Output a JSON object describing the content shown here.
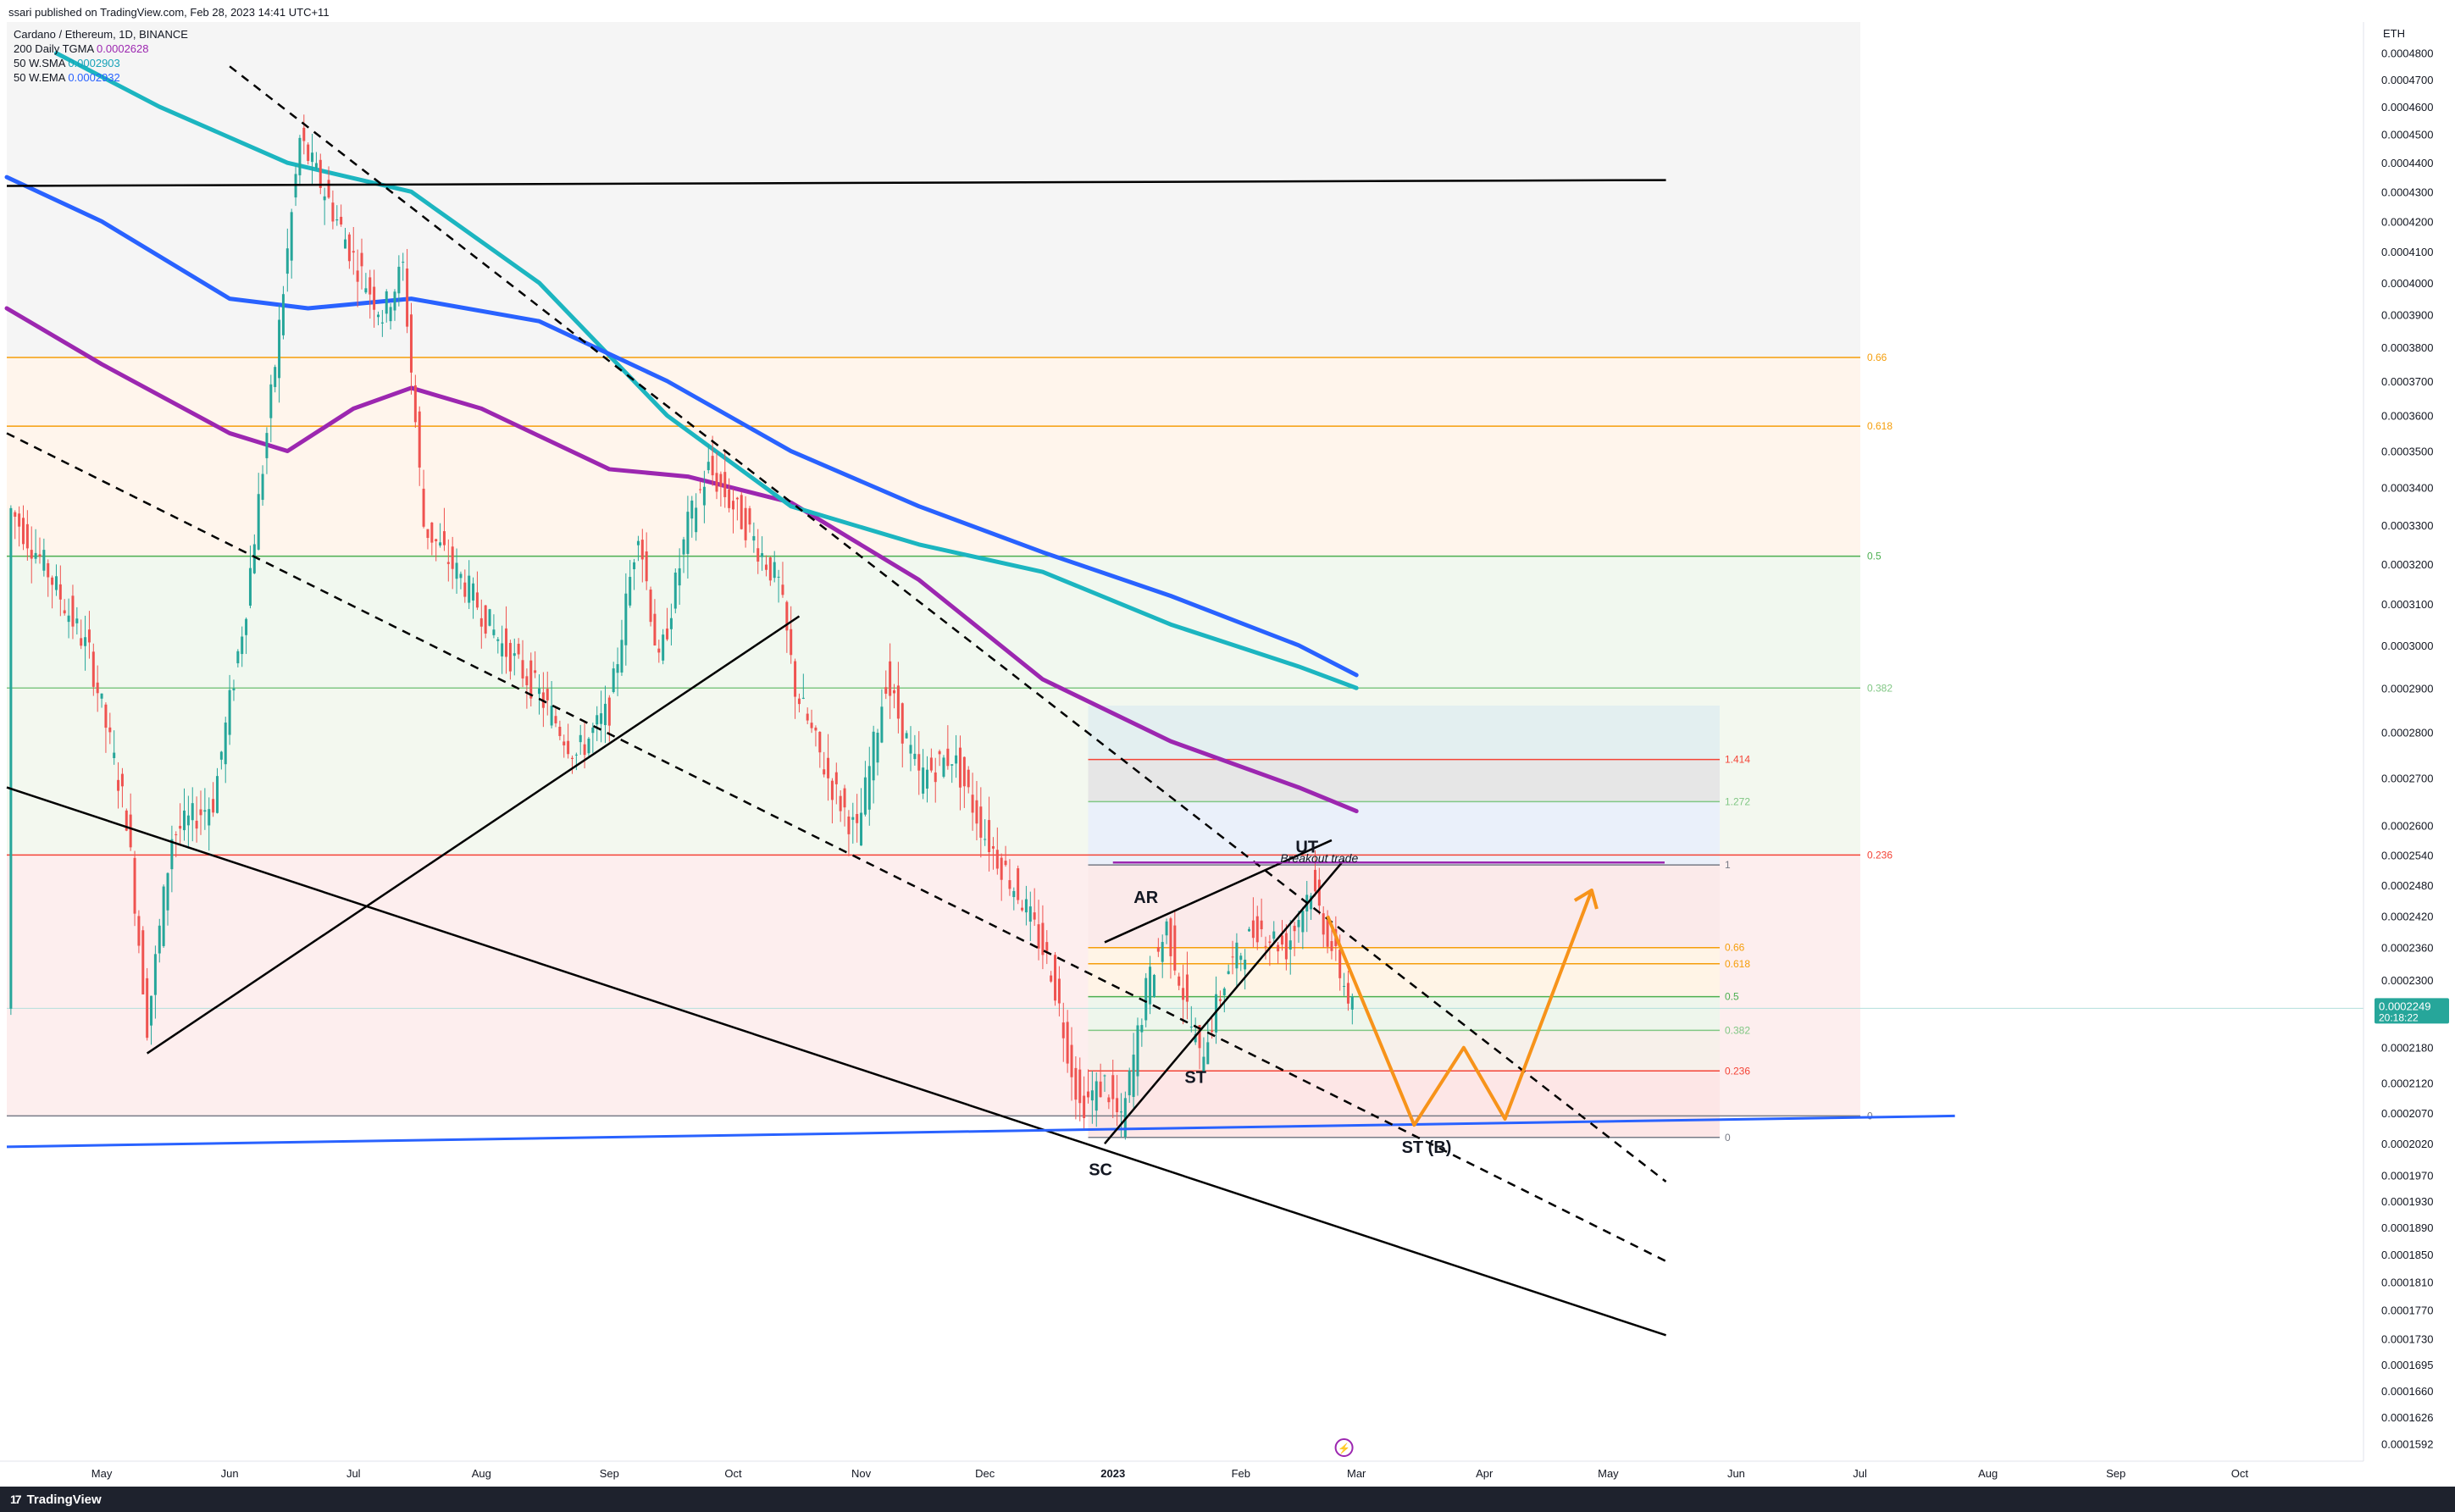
{
  "header": {
    "published": "ssari published on TradingView.com, Feb 28, 2023 14:41 UTC+11"
  },
  "legend": {
    "symbol": "Cardano / Ethereum, 1D, BINANCE",
    "indicators": [
      {
        "name": "200 Daily TGMA",
        "value": "0.0002628",
        "color": "#9c27b0"
      },
      {
        "name": "50 W.SMA",
        "value": "0.0002903",
        "color": "#17a2b8"
      },
      {
        "name": "50 W.EMA",
        "value": "0.0002932",
        "color": "#2962ff"
      }
    ]
  },
  "colors": {
    "up": "#26a69a",
    "down": "#ef5350",
    "tgma": "#9c27b0",
    "wsma": "#1cb5c0",
    "wema": "#2962ff",
    "projection": "#f7931a",
    "price_badge": "#26a69a"
  },
  "chart_data": {
    "type": "candlestick",
    "title": "Cardano / Ethereum, 1D, BINANCE",
    "y_unit": "ETH",
    "y_axis_scale": "log",
    "y_range": [
      0.000157,
      0.000492
    ],
    "x_range": [
      "2022-04-08",
      "2023-10-31"
    ],
    "y_ticks": [
      "0.0004800",
      "0.0004700",
      "0.0004600",
      "0.0004500",
      "0.0004400",
      "0.0004300",
      "0.0004200",
      "0.0004100",
      "0.0004000",
      "0.0003900",
      "0.0003800",
      "0.0003700",
      "0.0003600",
      "0.0003500",
      "0.0003400",
      "0.0003300",
      "0.0003200",
      "0.0003100",
      "0.0003000",
      "0.0002900",
      "0.0002800",
      "0.0002700",
      "0.0002600",
      "0.0002540",
      "0.0002480",
      "0.0002420",
      "0.0002360",
      "0.0002300",
      "0.0002240",
      "0.0002180",
      "0.0002120",
      "0.0002070",
      "0.0002020",
      "0.0001970",
      "0.0001930",
      "0.0001890",
      "0.0001850",
      "0.0001810",
      "0.0001770",
      "0.0001730",
      "0.0001695",
      "0.0001660",
      "0.0001626",
      "0.0001592"
    ],
    "x_ticks": [
      {
        "label": "May",
        "date": "2022-05-01"
      },
      {
        "label": "Jun",
        "date": "2022-06-01"
      },
      {
        "label": "Jul",
        "date": "2022-07-01"
      },
      {
        "label": "Aug",
        "date": "2022-08-01"
      },
      {
        "label": "Sep",
        "date": "2022-09-01"
      },
      {
        "label": "Oct",
        "date": "2022-10-01"
      },
      {
        "label": "Nov",
        "date": "2022-11-01"
      },
      {
        "label": "Dec",
        "date": "2022-12-01"
      },
      {
        "label": "2023",
        "date": "2023-01-01"
      },
      {
        "label": "Feb",
        "date": "2023-02-01"
      },
      {
        "label": "Mar",
        "date": "2023-03-01"
      },
      {
        "label": "Apr",
        "date": "2023-04-01"
      },
      {
        "label": "May",
        "date": "2023-05-01"
      },
      {
        "label": "Jun",
        "date": "2023-06-01"
      },
      {
        "label": "Jul",
        "date": "2023-07-01"
      },
      {
        "label": "Aug",
        "date": "2023-08-01"
      },
      {
        "label": "Sep",
        "date": "2023-09-01"
      },
      {
        "label": "Oct",
        "date": "2023-10-01"
      }
    ],
    "price_path": [
      [
        "2022-04-09",
        0.000334
      ],
      [
        "2022-04-18",
        0.000318
      ],
      [
        "2022-04-28",
        0.000298
      ],
      [
        "2022-05-07",
        0.000262
      ],
      [
        "2022-05-12",
        0.000222
      ],
      [
        "2022-05-18",
        0.000258
      ],
      [
        "2022-05-28",
        0.000265
      ],
      [
        "2022-06-05",
        0.00031
      ],
      [
        "2022-06-12",
        0.000375
      ],
      [
        "2022-06-18",
        0.000448
      ],
      [
        "2022-06-24",
        0.00043
      ],
      [
        "2022-07-01",
        0.000408
      ],
      [
        "2022-07-08",
        0.00039
      ],
      [
        "2022-07-13",
        0.000405
      ],
      [
        "2022-07-18",
        0.00033
      ],
      [
        "2022-07-28",
        0.000315
      ],
      [
        "2022-08-06",
        0.0003
      ],
      [
        "2022-08-14",
        0.00029
      ],
      [
        "2022-08-24",
        0.000275
      ],
      [
        "2022-09-01",
        0.000285
      ],
      [
        "2022-09-08",
        0.00033
      ],
      [
        "2022-09-13",
        0.000295
      ],
      [
        "2022-09-20",
        0.00033
      ],
      [
        "2022-09-25",
        0.000345
      ],
      [
        "2022-10-04",
        0.00033
      ],
      [
        "2022-10-12",
        0.000315
      ],
      [
        "2022-10-16",
        0.00029
      ],
      [
        "2022-10-24",
        0.00027
      ],
      [
        "2022-10-31",
        0.000258
      ],
      [
        "2022-11-07",
        0.000292
      ],
      [
        "2022-11-15",
        0.00027
      ],
      [
        "2022-11-23",
        0.000275
      ],
      [
        "2022-12-01",
        0.000258
      ],
      [
        "2022-12-10",
        0.000245
      ],
      [
        "2022-12-17",
        0.000232
      ],
      [
        "2022-12-24",
        0.000208
      ],
      [
        "2022-12-30",
        0.000212
      ],
      [
        "2023-01-03",
        0.000205
      ],
      [
        "2023-01-09",
        0.000228
      ],
      [
        "2023-01-14",
        0.00024
      ],
      [
        "2023-01-22",
        0.000216
      ],
      [
        "2023-01-29",
        0.000232
      ],
      [
        "2023-02-05",
        0.00024
      ],
      [
        "2023-02-12",
        0.000236
      ],
      [
        "2023-02-18",
        0.000248
      ],
      [
        "2023-02-23",
        0.000236
      ],
      [
        "2023-02-28",
        0.0002249
      ]
    ],
    "last_price": {
      "value": "0.0002249",
      "countdown": "20:18:22"
    },
    "moving_averages": [
      {
        "name": "200 Daily TGMA",
        "color": "#9c27b0",
        "points": [
          [
            "2022-04-08",
            0.000392
          ],
          [
            "2022-05-01",
            0.000375
          ],
          [
            "2022-06-01",
            0.000355
          ],
          [
            "2022-06-15",
            0.00035
          ],
          [
            "2022-07-01",
            0.000362
          ],
          [
            "2022-07-15",
            0.000368
          ],
          [
            "2022-08-01",
            0.000362
          ],
          [
            "2022-09-01",
            0.000345
          ],
          [
            "2022-09-20",
            0.000343
          ],
          [
            "2022-10-15",
            0.000336
          ],
          [
            "2022-11-15",
            0.000316
          ],
          [
            "2022-12-15",
            0.000292
          ],
          [
            "2023-01-15",
            0.000278
          ],
          [
            "2023-02-15",
            0.000268
          ],
          [
            "2023-03-01",
            0.000263
          ]
        ]
      },
      {
        "name": "50 W.SMA",
        "color": "#1cb5c0",
        "points": [
          [
            "2022-04-20",
            0.00048
          ],
          [
            "2022-05-15",
            0.00046
          ],
          [
            "2022-06-15",
            0.00044
          ],
          [
            "2022-07-15",
            0.00043
          ],
          [
            "2022-08-15",
            0.0004
          ],
          [
            "2022-09-15",
            0.00036
          ],
          [
            "2022-10-15",
            0.000335
          ],
          [
            "2022-11-15",
            0.000325
          ],
          [
            "2022-12-15",
            0.000318
          ],
          [
            "2023-01-15",
            0.000305
          ],
          [
            "2023-02-15",
            0.000295
          ],
          [
            "2023-03-01",
            0.00029
          ]
        ]
      },
      {
        "name": "50 W.EMA",
        "color": "#2962ff",
        "points": [
          [
            "2022-04-08",
            0.000435
          ],
          [
            "2022-05-01",
            0.00042
          ],
          [
            "2022-06-01",
            0.000395
          ],
          [
            "2022-06-20",
            0.000392
          ],
          [
            "2022-07-15",
            0.000395
          ],
          [
            "2022-08-15",
            0.000388
          ],
          [
            "2022-09-15",
            0.00037
          ],
          [
            "2022-10-15",
            0.00035
          ],
          [
            "2022-11-15",
            0.000335
          ],
          [
            "2022-12-15",
            0.000323
          ],
          [
            "2023-01-15",
            0.000312
          ],
          [
            "2023-02-15",
            0.0003
          ],
          [
            "2023-03-01",
            0.000293
          ]
        ]
      }
    ],
    "fib_levels_large": [
      {
        "label": "0.66",
        "price": 0.000377,
        "color": "#f59e0b"
      },
      {
        "label": "0.618",
        "price": 0.000357,
        "color": "#f59e0b"
      },
      {
        "label": "0.5",
        "price": 0.000322,
        "color": "#4caf50"
      },
      {
        "label": "0.382",
        "price": 0.00029,
        "color": "#81c784"
      },
      {
        "label": "0.236",
        "price": 0.000254,
        "color": "#f44336"
      },
      {
        "label": "0",
        "price": 0.0002065,
        "color": "#787b86"
      }
    ],
    "fib_levels_small": [
      {
        "label": "1.414",
        "price": 0.000274,
        "color": "#f44336"
      },
      {
        "label": "1.272",
        "price": 0.000265,
        "color": "#81c784"
      },
      {
        "label": "1",
        "price": 0.000252,
        "color": "#787b86"
      },
      {
        "label": "0.66",
        "price": 0.000236,
        "color": "#f59e0b"
      },
      {
        "label": "0.618",
        "price": 0.000233,
        "color": "#f59e0b"
      },
      {
        "label": "0.5",
        "price": 0.000227,
        "color": "#4caf50"
      },
      {
        "label": "0.382",
        "price": 0.000221,
        "color": "#81c784"
      },
      {
        "label": "0.236",
        "price": 0.000214,
        "color": "#f44336"
      },
      {
        "label": "0",
        "price": 0.000203,
        "color": "#787b86"
      }
    ],
    "annotations": [
      {
        "text": "UT",
        "date": "2023-02-17",
        "price": 0.0002545
      },
      {
        "text": "AR",
        "date": "2023-01-09",
        "price": 0.0002445
      },
      {
        "text": "ST",
        "date": "2023-01-21",
        "price": 0.000212
      },
      {
        "text": "SC",
        "date": "2022-12-29",
        "price": 0.000197
      },
      {
        "text": "ST (B)",
        "date": "2023-03-18",
        "price": 0.0002005
      },
      {
        "text": "Breakout trade",
        "date": "2023-02-20",
        "price": 0.0002525
      }
    ],
    "trendlines": [
      {
        "style": "solid",
        "color": "#000000",
        "points": [
          [
            "2022-04-08",
            0.000432
          ],
          [
            "2023-05-15",
            0.000434
          ]
        ]
      },
      {
        "style": "solid",
        "color": "#000000",
        "points": [
          [
            "2022-04-08",
            0.000268
          ],
          [
            "2023-05-15",
            0.0001735
          ]
        ]
      },
      {
        "style": "solid",
        "color": "#000000",
        "points": [
          [
            "2022-05-12",
            0.000217
          ],
          [
            "2022-10-17",
            0.000307
          ]
        ]
      },
      {
        "style": "solid",
        "color": "#2962ff",
        "points": [
          [
            "2022-04-08",
            0.0002015
          ],
          [
            "2023-07-24",
            0.0002065
          ]
        ]
      },
      {
        "style": "dashed",
        "color": "#000000",
        "points": [
          [
            "2022-06-01",
            0.000475
          ],
          [
            "2023-05-15",
            0.000196
          ]
        ]
      },
      {
        "style": "dashed",
        "color": "#000000",
        "points": [
          [
            "2022-04-08",
            0.000355
          ],
          [
            "2023-05-15",
            0.000184
          ]
        ]
      },
      {
        "style": "solid",
        "color": "#000000",
        "points": [
          [
            "2022-12-30",
            0.000202
          ],
          [
            "2023-02-26",
            0.000253
          ]
        ]
      },
      {
        "style": "solid",
        "color": "#000000",
        "points": [
          [
            "2022-12-30",
            0.000237
          ],
          [
            "2023-02-23",
            0.000257
          ]
        ]
      }
    ],
    "projection": [
      [
        "2023-02-22",
        0.000242
      ],
      [
        "2023-03-15",
        0.000205
      ],
      [
        "2023-03-27",
        0.000218
      ],
      [
        "2023-04-06",
        0.000206
      ],
      [
        "2023-04-27",
        0.000247
      ]
    ]
  }
}
